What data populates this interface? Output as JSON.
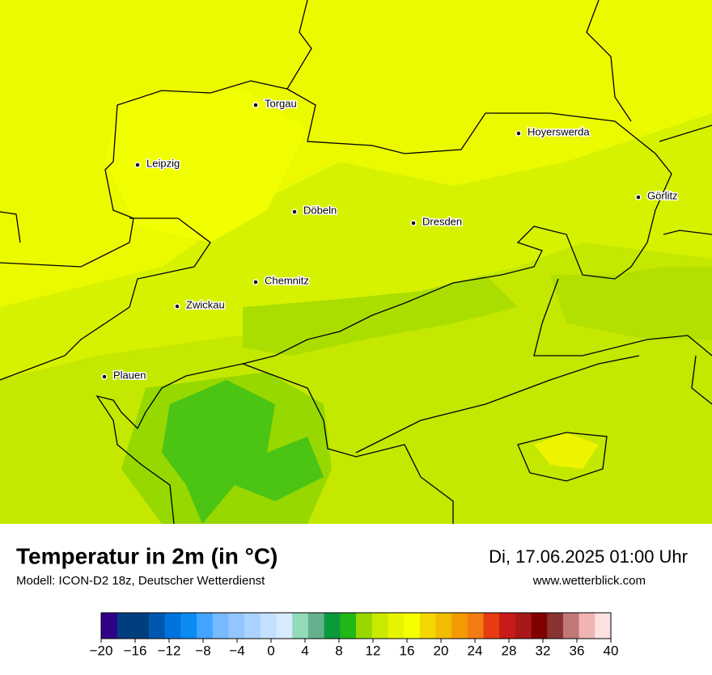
{
  "header": {
    "title": "Temperatur in 2m (in °C)",
    "model": "Modell: ICON-D2 18z, Deutscher Wetterdienst",
    "datetime": "Di, 17.06.2025 01:00 Uhr",
    "website": "www.wetterblick.com"
  },
  "cities": [
    "Torgau",
    "Hoyerswerda",
    "Leipzig",
    "Görlitz",
    "Döbeln",
    "Dresden",
    "Chemnitz",
    "Zwickau",
    "Plauen"
  ],
  "colorbar": {
    "min": -20,
    "max": 40,
    "colors": [
      "#310087",
      "#003e80",
      "#003f7e",
      "#0057b0",
      "#0074dc",
      "#0a8cf2",
      "#42a4ff",
      "#78baff",
      "#93c6ff",
      "#aad3ff",
      "#c4e0ff",
      "#d8eaff",
      "#92dab8",
      "#64b08c",
      "#0a9a3c",
      "#22b818",
      "#98d800",
      "#c8ea00",
      "#e6f400",
      "#f4ff00",
      "#f2d800",
      "#f2bc00",
      "#f29a00",
      "#f27c12",
      "#e63c10",
      "#c81a18",
      "#a81818",
      "#800000",
      "#8a3232",
      "#c07878",
      "#f0b4b4",
      "#ffe0e0"
    ],
    "ticks": [
      {
        "value": -20,
        "label": "−20"
      },
      {
        "value": -16,
        "label": "−16"
      },
      {
        "value": -12,
        "label": "−12"
      },
      {
        "value": -8,
        "label": "−8"
      },
      {
        "value": -4,
        "label": "−4"
      },
      0,
      4,
      8,
      12,
      16,
      20,
      24,
      28,
      32,
      36,
      40
    ]
  }
}
